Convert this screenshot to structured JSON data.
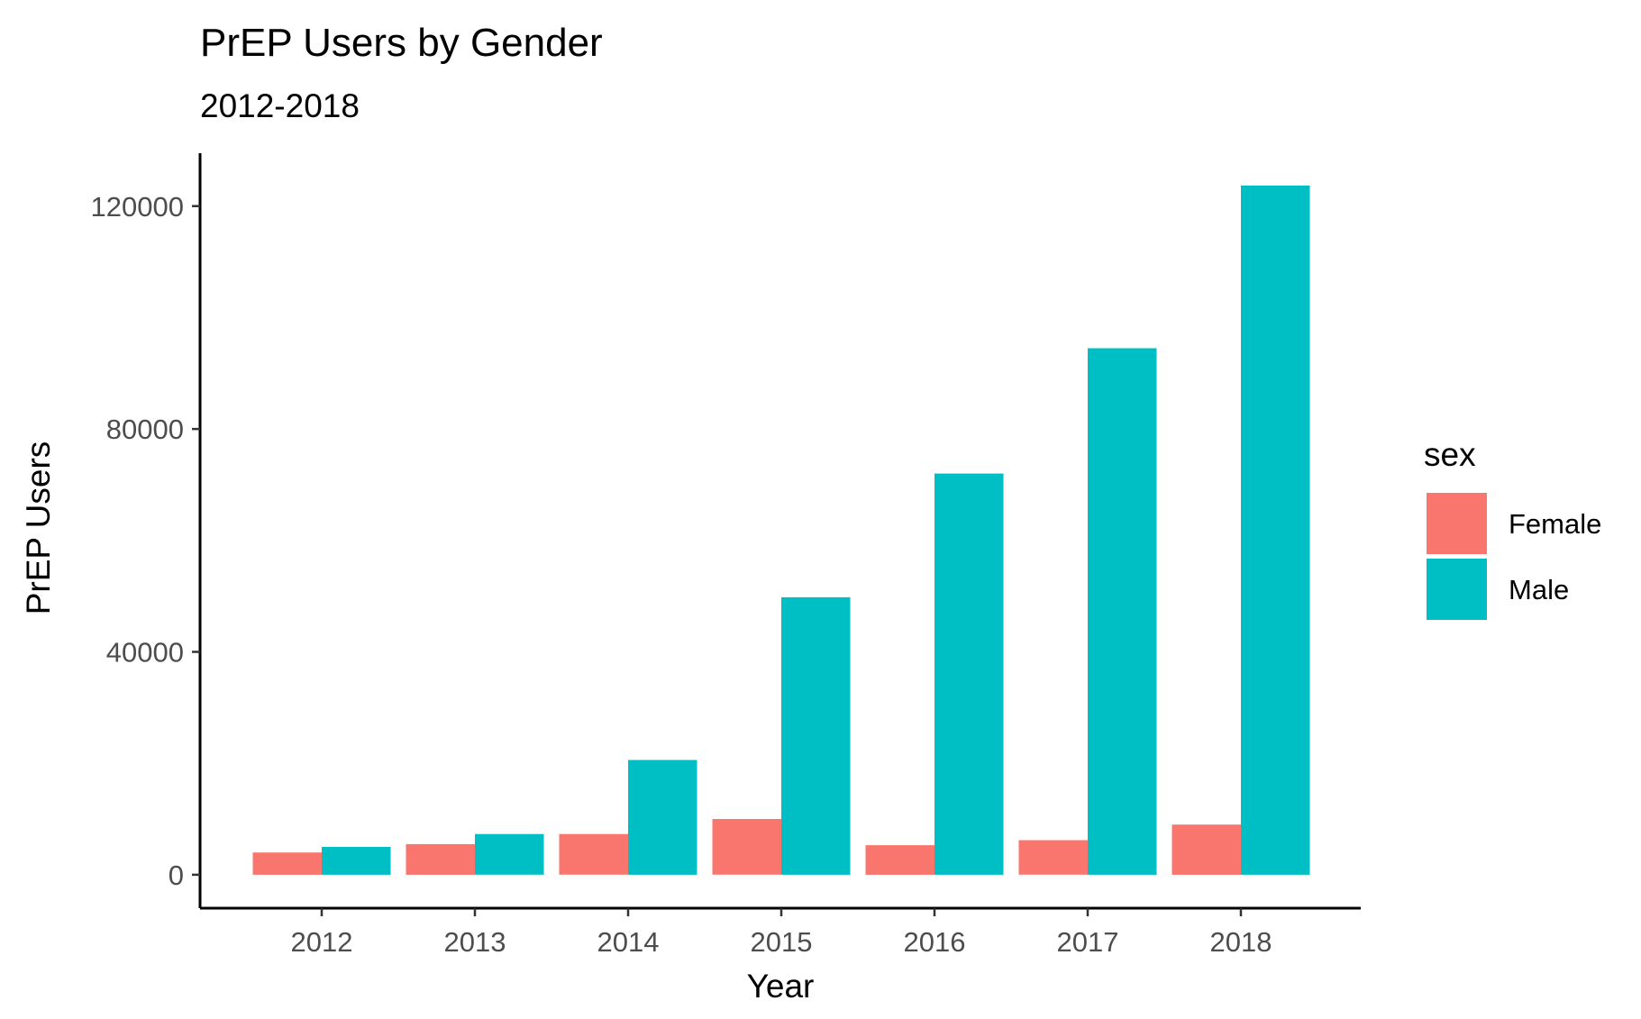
{
  "chart_data": {
    "type": "bar",
    "title": "PrEP Users by Gender",
    "subtitle": "2012-2018",
    "xlabel": "Year",
    "ylabel": "PrEP Users",
    "categories": [
      "2012",
      "2013",
      "2014",
      "2015",
      "2016",
      "2017",
      "2018"
    ],
    "series": [
      {
        "name": "Female",
        "color": "#F8766D",
        "values": [
          4000,
          5500,
          7300,
          10000,
          5300,
          6200,
          9000
        ]
      },
      {
        "name": "Male",
        "color": "#00BFC4",
        "values": [
          5000,
          7300,
          20600,
          49800,
          72000,
          94500,
          123700
        ]
      }
    ],
    "ylim": [
      -6000,
      129500
    ],
    "yticks": [
      0,
      40000,
      80000,
      120000
    ],
    "ytick_labels": [
      "0",
      "40000",
      "80000",
      "120000"
    ],
    "grid": false,
    "legend": {
      "title": "sex",
      "placement": "right"
    }
  }
}
